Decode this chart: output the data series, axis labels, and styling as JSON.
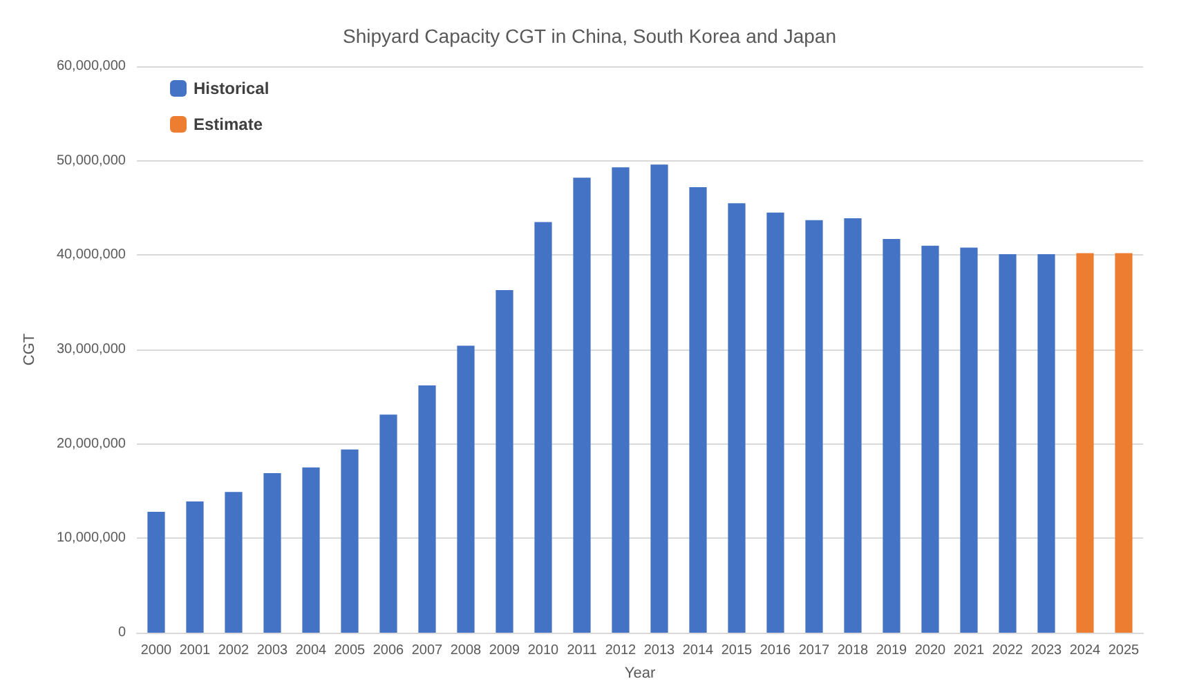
{
  "chart_data": {
    "type": "bar",
    "title": "Shipyard Capacity CGT in China, South Korea and Japan",
    "xlabel": "Year",
    "ylabel": "CGT",
    "categories": [
      "2000",
      "2001",
      "2002",
      "2003",
      "2004",
      "2005",
      "2006",
      "2007",
      "2008",
      "2009",
      "2010",
      "2011",
      "2012",
      "2013",
      "2014",
      "2015",
      "2016",
      "2017",
      "2018",
      "2019",
      "2020",
      "2021",
      "2022",
      "2023",
      "2024",
      "2025"
    ],
    "stacked": true,
    "series": [
      {
        "name": "Historical",
        "color": "#4472c4",
        "values": [
          12800000,
          13900000,
          14900000,
          16900000,
          17500000,
          19400000,
          23100000,
          26200000,
          30400000,
          36300000,
          43500000,
          48200000,
          49300000,
          49600000,
          47200000,
          45500000,
          44500000,
          43700000,
          43900000,
          41700000,
          41000000,
          40800000,
          40100000,
          40100000,
          null,
          null
        ]
      },
      {
        "name": "Estimate",
        "color": "#ed7d31",
        "values": [
          null,
          null,
          null,
          null,
          null,
          null,
          null,
          null,
          null,
          null,
          null,
          null,
          null,
          null,
          null,
          null,
          null,
          null,
          null,
          null,
          null,
          null,
          null,
          null,
          40200000,
          40200000
        ]
      }
    ],
    "ylim": [
      0,
      60000000
    ],
    "yticks": [
      {
        "value": 0,
        "label": "0"
      },
      {
        "value": 10000000,
        "label": "10,000,000"
      },
      {
        "value": 20000000,
        "label": "20,000,000"
      },
      {
        "value": 30000000,
        "label": "30,000,000"
      },
      {
        "value": 40000000,
        "label": "40,000,000"
      },
      {
        "value": 50000000,
        "label": "50,000,000"
      },
      {
        "value": 60000000,
        "label": "60,000,000"
      }
    ],
    "grid": "y",
    "legend": "top left"
  }
}
